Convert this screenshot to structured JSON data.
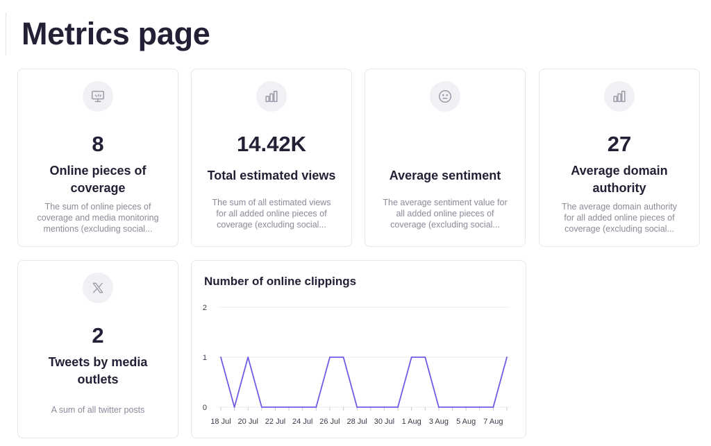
{
  "page": {
    "title": "Metrics page"
  },
  "cards": [
    {
      "icon": "monitor-icon",
      "value": "8",
      "label": "Online pieces of coverage",
      "description": "The sum of online pieces of coverage and media monitoring mentions (excluding social..."
    },
    {
      "icon": "bar-chart-icon",
      "value": "14.42K",
      "label": "Total estimated views",
      "description": "The sum of all estimated views for all added online pieces of coverage (excluding social..."
    },
    {
      "icon": "neutral-face-icon",
      "value": "",
      "label": "Average sentiment",
      "description": "The average sentiment value for all added online pieces of coverage (excluding social..."
    },
    {
      "icon": "bar-chart-icon",
      "value": "27",
      "label": "Average domain authority",
      "description": "The average domain authority for all added online pieces of coverage (excluding social..."
    },
    {
      "icon": "x-logo-icon",
      "value": "2",
      "label": "Tweets by media outlets",
      "description": "A sum of all twitter posts"
    }
  ],
  "chart_data": {
    "type": "line",
    "title": "Number of online clippings",
    "xlabel": "",
    "ylabel": "",
    "ylim": [
      0,
      2
    ],
    "yticks": [
      0,
      1,
      2
    ],
    "grid": true,
    "x": [
      "18 Jul",
      "19 Jul",
      "20 Jul",
      "21 Jul",
      "22 Jul",
      "23 Jul",
      "24 Jul",
      "25 Jul",
      "26 Jul",
      "27 Jul",
      "28 Jul",
      "29 Jul",
      "30 Jul",
      "31 Jul",
      "1 Aug",
      "2 Aug",
      "3 Aug",
      "4 Aug",
      "5 Aug",
      "6 Aug",
      "7 Aug",
      "8 Aug"
    ],
    "xtick_labels": [
      "18 Jul",
      "20 Jul",
      "22 Jul",
      "24 Jul",
      "26 Jul",
      "28 Jul",
      "30 Jul",
      "1 Aug",
      "3 Aug",
      "5 Aug",
      "7 Aug"
    ],
    "series": [
      {
        "values": [
          1,
          0,
          1,
          0,
          0,
          0,
          0,
          0,
          1,
          1,
          0,
          0,
          0,
          0,
          1,
          1,
          0,
          0,
          0,
          0,
          0,
          1
        ]
      }
    ],
    "colors": {
      "line": "#6c5ce7",
      "grid": "#ebebf0"
    }
  }
}
